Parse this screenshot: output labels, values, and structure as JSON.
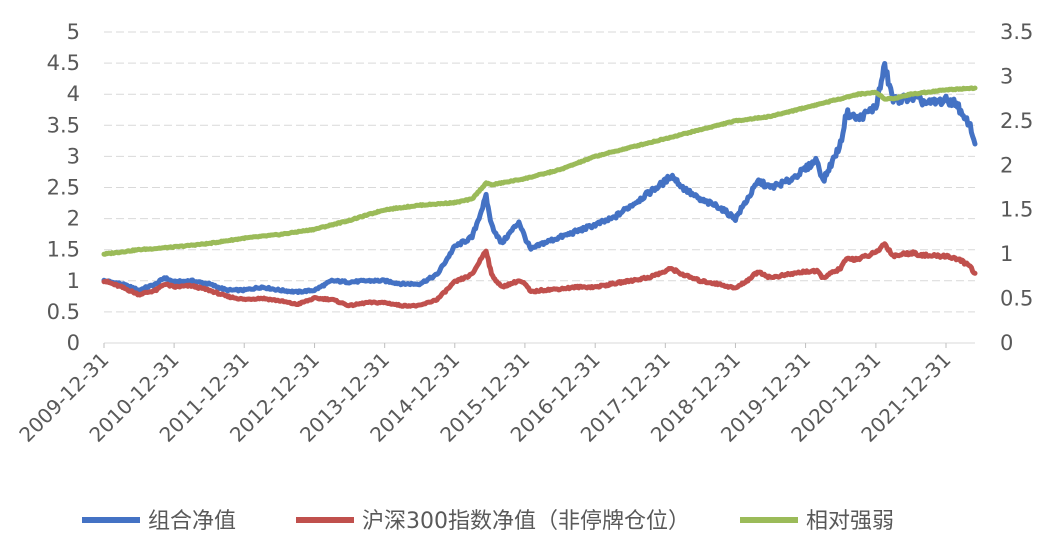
{
  "chart_data": {
    "type": "line",
    "title": "",
    "xlabel": "",
    "ylabel": "",
    "y2label": "",
    "ylim": [
      0,
      5
    ],
    "y_ticks": [
      "0",
      "0.5",
      "1",
      "1.5",
      "2",
      "2.5",
      "3",
      "3.5",
      "4",
      "4.5",
      "5"
    ],
    "y2lim": [
      0,
      3.5
    ],
    "y2_ticks": [
      "0",
      "0.5",
      "1",
      "1.5",
      "2",
      "2.5",
      "3",
      "3.5"
    ],
    "x_ticks": [
      "2009-12-31",
      "2010-12-31",
      "2011-12-31",
      "2012-12-31",
      "2013-12-31",
      "2014-12-31",
      "2015-12-31",
      "2016-12-31",
      "2017-12-31",
      "2018-12-31",
      "2019-12-31",
      "2020-12-31",
      "2021-12-31"
    ],
    "x_range": [
      "2009-12-31",
      "2022-05-31"
    ],
    "grid": true,
    "legend": "bottom",
    "series": [
      {
        "name": "组合净值",
        "axis": "left",
        "color": "#4472C4",
        "x": [
          "2009-12-31",
          "2010-03-31",
          "2010-06-30",
          "2010-09-30",
          "2010-11-10",
          "2010-12-31",
          "2011-03-31",
          "2011-06-30",
          "2011-09-30",
          "2011-12-31",
          "2012-03-31",
          "2012-06-30",
          "2012-09-30",
          "2012-12-31",
          "2013-03-31",
          "2013-06-30",
          "2013-09-30",
          "2013-12-31",
          "2014-03-31",
          "2014-06-30",
          "2014-09-30",
          "2014-12-31",
          "2015-03-31",
          "2015-06-12",
          "2015-07-10",
          "2015-08-31",
          "2015-11-30",
          "2015-12-31",
          "2016-01-31",
          "2016-03-31",
          "2016-06-30",
          "2016-09-30",
          "2016-12-31",
          "2017-03-31",
          "2017-06-30",
          "2017-09-30",
          "2017-12-31",
          "2018-01-31",
          "2018-03-31",
          "2018-06-30",
          "2018-09-30",
          "2018-12-31",
          "2019-02-28",
          "2019-04-30",
          "2019-06-30",
          "2019-09-30",
          "2019-12-31",
          "2020-02-28",
          "2020-03-31",
          "2020-06-30",
          "2020-07-31",
          "2020-09-30",
          "2020-12-31",
          "2021-02-15",
          "2021-03-31",
          "2021-06-30",
          "2021-09-30",
          "2021-12-31",
          "2022-02-28",
          "2022-03-31",
          "2022-04-30",
          "2022-05-31"
        ],
        "values": [
          1.0,
          0.95,
          0.85,
          0.95,
          1.05,
          0.98,
          1.0,
          0.95,
          0.85,
          0.85,
          0.9,
          0.85,
          0.82,
          0.85,
          1.0,
          0.98,
          1.0,
          1.0,
          0.95,
          0.95,
          1.1,
          1.55,
          1.7,
          2.35,
          1.9,
          1.6,
          1.95,
          1.7,
          1.5,
          1.6,
          1.7,
          1.8,
          1.9,
          2.0,
          2.2,
          2.4,
          2.6,
          2.7,
          2.5,
          2.3,
          2.2,
          2.0,
          2.3,
          2.6,
          2.5,
          2.6,
          2.8,
          2.95,
          2.6,
          3.2,
          3.7,
          3.6,
          3.8,
          4.45,
          3.9,
          3.95,
          3.85,
          3.9,
          3.85,
          3.6,
          3.55,
          3.2
        ]
      },
      {
        "name": "沪深300指数净值（非停牌仓位）",
        "axis": "left",
        "color": "#C0504D",
        "x": [
          "2009-12-31",
          "2010-03-31",
          "2010-06-30",
          "2010-09-30",
          "2010-11-10",
          "2010-12-31",
          "2011-03-31",
          "2011-06-30",
          "2011-09-30",
          "2011-12-31",
          "2012-03-31",
          "2012-06-30",
          "2012-09-30",
          "2012-12-31",
          "2013-03-31",
          "2013-06-30",
          "2013-09-30",
          "2013-12-31",
          "2014-03-31",
          "2014-06-30",
          "2014-09-30",
          "2014-12-31",
          "2015-03-31",
          "2015-06-12",
          "2015-07-10",
          "2015-08-31",
          "2015-11-30",
          "2015-12-31",
          "2016-01-31",
          "2016-03-31",
          "2016-06-30",
          "2016-09-30",
          "2016-12-31",
          "2017-03-31",
          "2017-06-30",
          "2017-09-30",
          "2017-12-31",
          "2018-01-31",
          "2018-03-31",
          "2018-06-30",
          "2018-09-30",
          "2018-12-31",
          "2019-02-28",
          "2019-04-30",
          "2019-06-30",
          "2019-09-30",
          "2019-12-31",
          "2020-02-28",
          "2020-03-31",
          "2020-06-30",
          "2020-07-31",
          "2020-09-30",
          "2020-12-31",
          "2021-02-15",
          "2021-03-31",
          "2021-06-30",
          "2021-09-30",
          "2021-12-31",
          "2022-02-28",
          "2022-03-31",
          "2022-04-30",
          "2022-05-31"
        ],
        "values": [
          1.0,
          0.9,
          0.78,
          0.85,
          0.95,
          0.9,
          0.92,
          0.85,
          0.75,
          0.7,
          0.72,
          0.68,
          0.62,
          0.72,
          0.7,
          0.6,
          0.65,
          0.65,
          0.6,
          0.6,
          0.7,
          0.98,
          1.1,
          1.5,
          1.1,
          0.9,
          1.0,
          0.95,
          0.82,
          0.85,
          0.87,
          0.9,
          0.9,
          0.95,
          1.0,
          1.05,
          1.15,
          1.2,
          1.1,
          1.0,
          0.95,
          0.88,
          1.0,
          1.15,
          1.05,
          1.1,
          1.15,
          1.15,
          1.05,
          1.2,
          1.35,
          1.35,
          1.45,
          1.6,
          1.4,
          1.45,
          1.4,
          1.4,
          1.35,
          1.3,
          1.25,
          1.12
        ]
      },
      {
        "name": "相对强弱",
        "axis": "right",
        "color": "#9BBB59",
        "x": [
          "2009-12-31",
          "2010-06-30",
          "2010-12-31",
          "2011-06-30",
          "2011-12-31",
          "2012-06-30",
          "2012-12-31",
          "2013-06-30",
          "2013-12-31",
          "2014-06-30",
          "2014-12-31",
          "2015-03-31",
          "2015-06-12",
          "2015-07-10",
          "2015-12-31",
          "2016-06-30",
          "2016-12-31",
          "2017-06-30",
          "2017-12-31",
          "2018-06-30",
          "2018-12-31",
          "2019-06-30",
          "2019-12-31",
          "2020-06-30",
          "2020-09-30",
          "2020-12-31",
          "2021-02-15",
          "2021-03-31",
          "2021-06-30",
          "2021-12-31",
          "2022-05-31"
        ],
        "values": [
          1.0,
          1.05,
          1.08,
          1.12,
          1.18,
          1.22,
          1.28,
          1.38,
          1.5,
          1.55,
          1.58,
          1.62,
          1.8,
          1.78,
          1.85,
          1.95,
          2.1,
          2.2,
          2.3,
          2.4,
          2.5,
          2.55,
          2.65,
          2.75,
          2.8,
          2.82,
          2.75,
          2.75,
          2.8,
          2.85,
          2.87
        ]
      }
    ]
  }
}
